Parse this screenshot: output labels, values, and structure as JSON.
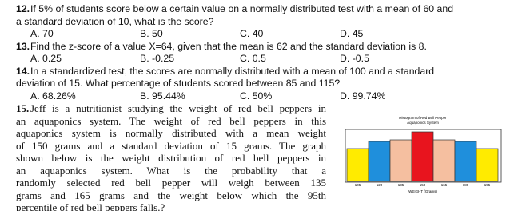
{
  "questions": [
    {
      "number": "12.",
      "lines": [
        "If 5% of students score below a certain value on a normally distributed test with a mean of 60 and",
        "a standard deviation of 10, what is the score?"
      ],
      "options": [
        "A. 70",
        "B. 50",
        "C. 40",
        "D. 45"
      ]
    },
    {
      "number": "13.",
      "lines": [
        "Find the z-score of a value X=64, given that the mean is 62 and the standard deviation is 8."
      ],
      "options": [
        "A. 0.25",
        "B. -0.25",
        "C. 0.5",
        "D. -0.5"
      ]
    },
    {
      "number": "14.",
      "lines": [
        "In a standardized test, the scores are normally distributed with a mean of 100 and a standard",
        "deviation of 15. What percentage of students scored between 85 and 115?"
      ],
      "options": [
        "A. 68.26%",
        "B. 95.44%",
        "C. 50%",
        "D. 99.74%"
      ]
    },
    {
      "number": "15.",
      "lines": [
        "Jeff is a nutritionist studying the weight of red bell peppers in",
        "an aquaponics system. The weight of red bell peppers in this",
        "aquaponics system is normally distributed with a mean weight",
        "of 150 grams and a standard deviation of 15 grams. The graph",
        "shown below is the weight distribution of red bell peppers in",
        "an aquaponics system. What is the probability that a",
        "randomly selected red bell pepper will weigh between 135",
        "grams and 165 grams and the weight below which the 95th",
        "percentile of red bell peppers falls.?"
      ],
      "options": []
    }
  ],
  "figure": {
    "title_lines": [
      "Histogram of Red Bell Pepper",
      "Aquaponics System"
    ],
    "tick_labels": [
      "105",
      "120",
      "135",
      "150",
      "165",
      "180",
      "195"
    ],
    "axis_label": "WEIGHT (Grams)"
  }
}
